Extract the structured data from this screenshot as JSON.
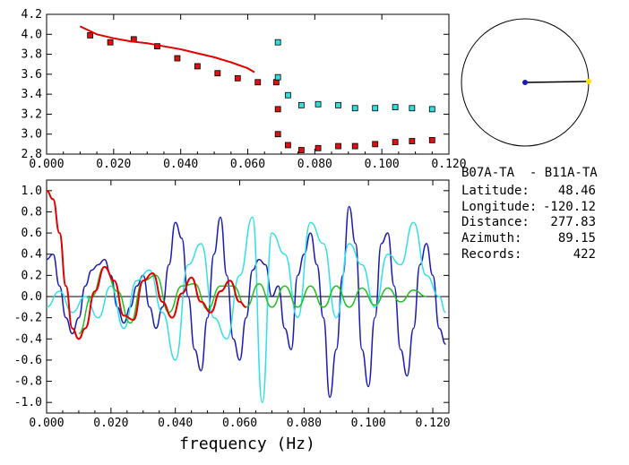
{
  "info": {
    "station_pair": "B07A-TA  - B11A-TA",
    "latitude_label": "Latitude:",
    "latitude_value": "48.46",
    "longitude_label": "Longitude:",
    "longitude_value": "-120.12",
    "distance_label": "Distance:",
    "distance_value": "277.83",
    "azimuth_label": "Azimuth:",
    "azimuth_value": "89.15",
    "records_label": "Records:",
    "records_value": "422"
  },
  "colors": {
    "red": "#e00000",
    "blue": "#1a1ab4",
    "cyan": "#30e0e8",
    "green": "#20c020",
    "square_red": "#dd1111",
    "square_cyan": "#33dddd",
    "yellow": "#ffe000"
  },
  "chart_data": [
    {
      "type": "scatter",
      "xlim": [
        0.0,
        0.12
      ],
      "ylim": [
        2.8,
        4.2
      ],
      "x_ticks": [
        "0.000",
        "0.020",
        "0.040",
        "0.060",
        "0.080",
        "0.100",
        "0.120"
      ],
      "y_ticks": [
        "2.8",
        "3.0",
        "3.2",
        "3.4",
        "3.6",
        "3.8",
        "4.0",
        "4.2"
      ],
      "series": [
        {
          "marker": "square-red",
          "x": [
            0.013,
            0.019,
            0.026,
            0.033,
            0.039,
            0.045,
            0.051,
            0.057,
            0.063,
            0.0685,
            0.069,
            0.069,
            0.072,
            0.076,
            0.081,
            0.087,
            0.092,
            0.098,
            0.104,
            0.109,
            0.115
          ],
          "y": [
            3.99,
            3.92,
            3.95,
            3.88,
            3.76,
            3.68,
            3.61,
            3.56,
            3.52,
            3.52,
            3.25,
            3.0,
            2.89,
            2.84,
            2.86,
            2.88,
            2.88,
            2.9,
            2.92,
            2.93,
            2.94
          ]
        },
        {
          "marker": "square-cyan",
          "x": [
            0.069,
            0.069,
            0.072,
            0.076,
            0.081,
            0.087,
            0.092,
            0.098,
            0.104,
            0.109,
            0.115
          ],
          "y": [
            3.92,
            3.57,
            3.39,
            3.29,
            3.3,
            3.29,
            3.26,
            3.26,
            3.27,
            3.26,
            3.25
          ]
        },
        {
          "line": "red",
          "x": [
            0.01,
            0.015,
            0.02,
            0.025,
            0.03,
            0.035,
            0.04,
            0.045,
            0.05,
            0.055,
            0.06,
            0.062
          ],
          "y": [
            4.08,
            4.0,
            3.96,
            3.93,
            3.91,
            3.88,
            3.85,
            3.81,
            3.77,
            3.72,
            3.66,
            3.62
          ]
        }
      ]
    },
    {
      "type": "line",
      "xlim": [
        0.0,
        0.125
      ],
      "ylim": [
        -1.1,
        1.1
      ],
      "x_ticks": [
        "0.000",
        "0.020",
        "0.040",
        "0.060",
        "0.080",
        "0.100",
        "0.120"
      ],
      "y_ticks": [
        "-1.0",
        "-0.8",
        "-0.6",
        "-0.4",
        "-0.2",
        "0.0",
        "0.2",
        "0.4",
        "0.6",
        "0.8",
        "1.0"
      ],
      "xlabel": "frequency (Hz)",
      "series": [
        {
          "color": "red",
          "x": [
            0.0,
            0.002,
            0.004,
            0.006,
            0.008,
            0.01,
            0.012,
            0.015,
            0.018,
            0.021,
            0.024,
            0.027,
            0.03,
            0.033,
            0.036,
            0.039,
            0.042,
            0.045,
            0.048,
            0.051,
            0.054,
            0.057,
            0.06,
            0.062
          ],
          "y": [
            1.0,
            0.92,
            0.6,
            0.1,
            -0.3,
            -0.4,
            -0.3,
            0.05,
            0.28,
            0.15,
            -0.18,
            -0.22,
            0.15,
            0.22,
            -0.05,
            -0.2,
            0.03,
            0.18,
            -0.05,
            -0.15,
            0.05,
            0.15,
            -0.05,
            -0.1
          ]
        },
        {
          "color": "green",
          "x": [
            0.01,
            0.014,
            0.018,
            0.022,
            0.026,
            0.03,
            0.034,
            0.038,
            0.042,
            0.046,
            0.05,
            0.054,
            0.058,
            0.062,
            0.066,
            0.07,
            0.074,
            0.078,
            0.082,
            0.086,
            0.09,
            0.094,
            0.098,
            0.102,
            0.106,
            0.11,
            0.114,
            0.118
          ],
          "y": [
            -0.35,
            0.0,
            0.28,
            0.05,
            -0.25,
            0.15,
            0.2,
            -0.15,
            0.1,
            0.12,
            -0.12,
            0.1,
            0.1,
            -0.1,
            0.12,
            -0.1,
            0.1,
            -0.1,
            0.1,
            -0.1,
            0.1,
            -0.1,
            0.08,
            -0.08,
            0.08,
            -0.05,
            0.06,
            0.0
          ]
        },
        {
          "color": "blue",
          "x": [
            0.0,
            0.002,
            0.004,
            0.006,
            0.008,
            0.01,
            0.012,
            0.014,
            0.016,
            0.018,
            0.02,
            0.022,
            0.024,
            0.026,
            0.028,
            0.03,
            0.032,
            0.034,
            0.036,
            0.038,
            0.04,
            0.042,
            0.044,
            0.046,
            0.048,
            0.05,
            0.052,
            0.054,
            0.056,
            0.058,
            0.06,
            0.062,
            0.064,
            0.066,
            0.068,
            0.07,
            0.072,
            0.074,
            0.076,
            0.078,
            0.08,
            0.082,
            0.084,
            0.086,
            0.088,
            0.09,
            0.092,
            0.094,
            0.096,
            0.098,
            0.1,
            0.102,
            0.104,
            0.106,
            0.108,
            0.11,
            0.112,
            0.114,
            0.116,
            0.118,
            0.12,
            0.122,
            0.124
          ],
          "y": [
            0.35,
            0.4,
            0.1,
            -0.2,
            -0.35,
            -0.2,
            0.1,
            0.25,
            0.3,
            0.35,
            0.2,
            -0.1,
            -0.25,
            -0.1,
            0.1,
            0.2,
            -0.1,
            -0.3,
            -0.1,
            0.3,
            0.7,
            0.55,
            0.0,
            -0.5,
            -0.7,
            -0.2,
            0.4,
            0.75,
            0.2,
            -0.4,
            -0.6,
            -0.2,
            0.25,
            0.35,
            0.3,
            0.0,
            0.1,
            -0.3,
            -0.5,
            0.2,
            0.4,
            0.6,
            0.3,
            -0.2,
            -0.95,
            -0.5,
            0.2,
            0.85,
            0.5,
            -0.5,
            -0.85,
            -0.2,
            0.5,
            0.6,
            0.1,
            -0.5,
            -0.75,
            -0.3,
            0.3,
            0.5,
            0.2,
            -0.3,
            -0.45
          ]
        },
        {
          "color": "cyan",
          "x": [
            0.0,
            0.004,
            0.008,
            0.012,
            0.016,
            0.02,
            0.024,
            0.028,
            0.032,
            0.036,
            0.04,
            0.044,
            0.048,
            0.052,
            0.056,
            0.06,
            0.064,
            0.067,
            0.07,
            0.074,
            0.078,
            0.082,
            0.086,
            0.09,
            0.094,
            0.098,
            0.102,
            0.106,
            0.11,
            0.114,
            0.118,
            0.122,
            0.124
          ],
          "y": [
            -0.1,
            0.05,
            -0.15,
            0.0,
            -0.2,
            0.1,
            -0.3,
            0.15,
            0.25,
            -0.15,
            -0.6,
            0.3,
            0.5,
            -0.2,
            -0.4,
            0.2,
            0.75,
            -1.0,
            0.6,
            0.4,
            -0.2,
            0.7,
            0.5,
            -0.2,
            0.5,
            0.3,
            -0.1,
            0.4,
            0.3,
            0.7,
            0.2,
            0.0,
            -0.15
          ]
        }
      ]
    },
    {
      "type": "polar-indicator",
      "azimuth_deg": 89.15
    }
  ]
}
